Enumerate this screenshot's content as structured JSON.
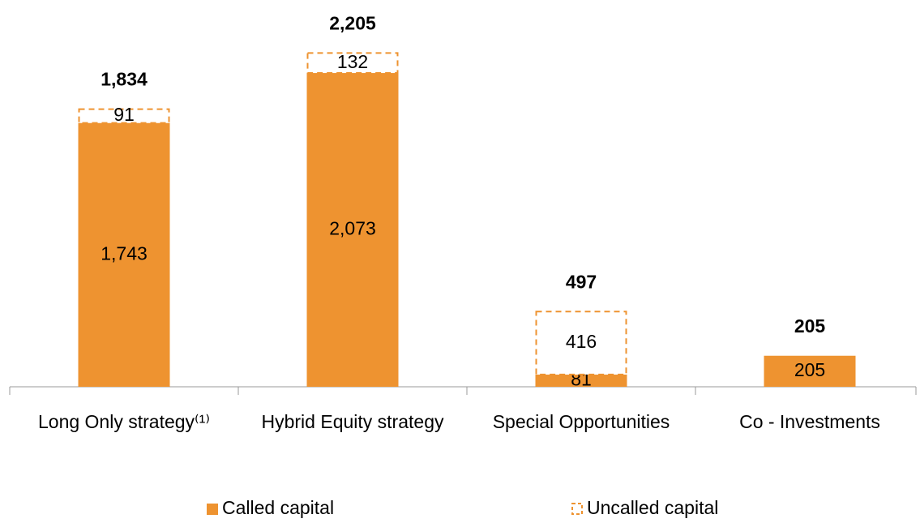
{
  "chart_data": {
    "type": "stacked_bar",
    "categories": [
      "Long Only strategy⁽¹⁾",
      "Hybrid Equity strategy",
      "Special Opportunities",
      "Co - Investments"
    ],
    "series": [
      {
        "name": "Called capital",
        "color": "#ee9330",
        "values": [
          1743,
          2073,
          81,
          205
        ],
        "value_labels": [
          "1,743",
          "2,073",
          "81",
          "205"
        ]
      },
      {
        "name": "Uncalled capital",
        "color": "#ee9330",
        "dashed": true,
        "values": [
          91,
          132,
          416,
          null
        ],
        "value_labels": [
          "91",
          "132",
          "416",
          null
        ]
      }
    ],
    "totals": [
      1834,
      2205,
      497,
      205
    ],
    "totals_labels": [
      "1,834",
      "2,205",
      "497",
      "205"
    ],
    "ylim": [
      0,
      2400
    ],
    "legend": "bottom"
  }
}
